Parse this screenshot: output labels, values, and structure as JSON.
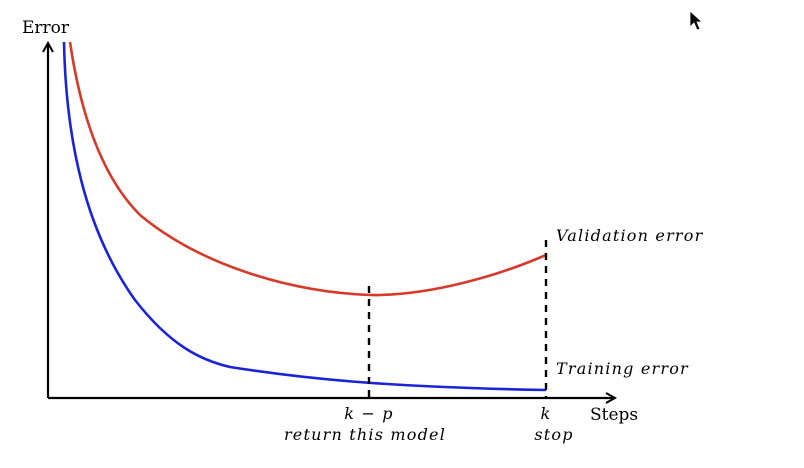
{
  "diagram": {
    "y_axis_label": "Error",
    "x_axis_label": "Steps",
    "validation_label": "Validation error",
    "training_label": "Training error",
    "marker_k_minus_p": "k − p",
    "marker_k_minus_p_caption": "return this model",
    "marker_k": "k",
    "marker_k_caption": "stop",
    "colors": {
      "validation": "#d63a2a",
      "training": "#1a24d6",
      "axes": "#000000"
    },
    "icons": [
      "mouse-cursor-icon"
    ]
  }
}
